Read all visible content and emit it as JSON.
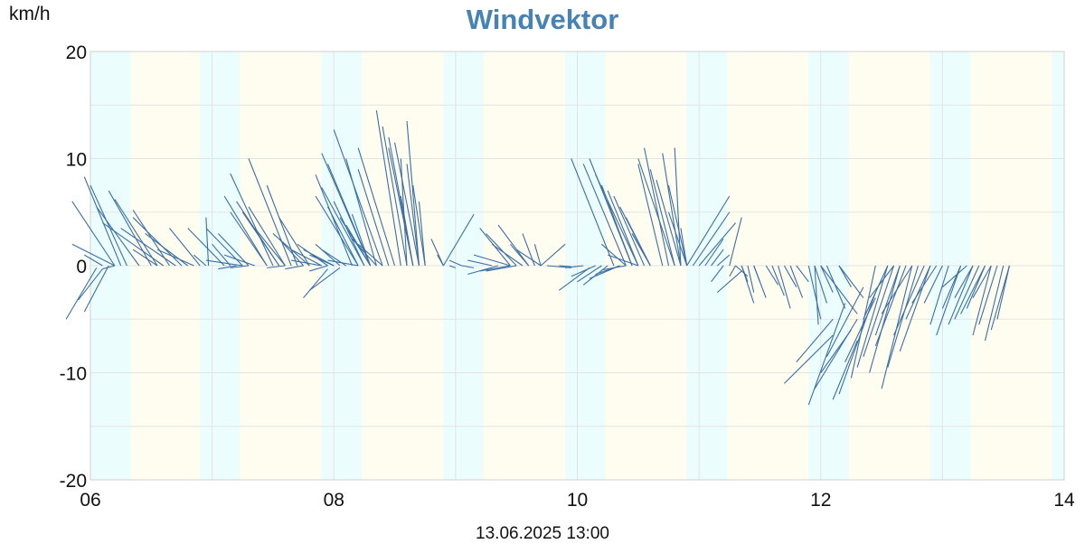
{
  "chart_data": {
    "type": "vector",
    "title": "Windvektor",
    "ylabel": "km/h",
    "footer": "13.06.2025 13:00",
    "xlim": [
      6,
      14
    ],
    "ylim": [
      -20,
      20
    ],
    "x_ticks": [
      "06",
      "08",
      "10",
      "12",
      "14"
    ],
    "y_ticks": [
      "20",
      "10",
      "0",
      "-10",
      "-20"
    ],
    "grid": true,
    "colors": {
      "vector": "#3a6fa5",
      "title": "#4682b4",
      "day": "#fffdf0",
      "night": "#ecfdfe",
      "grid": "#e3e3e3"
    },
    "vectors": [
      [
        5.8,
        -5.0,
        6.05,
        -0.2
      ],
      [
        5.9,
        -3.2,
        6.1,
        -0.3
      ],
      [
        5.95,
        -4.3,
        6.15,
        0
      ],
      [
        6.1,
        -0.3,
        6.2,
        0
      ],
      [
        5.85,
        6.0,
        6.2,
        0
      ],
      [
        5.95,
        8.3,
        6.25,
        0
      ],
      [
        6.0,
        7.5,
        6.3,
        0
      ],
      [
        6.05,
        5.5,
        6.4,
        0
      ],
      [
        6.15,
        7.0,
        6.5,
        0
      ],
      [
        6.2,
        6.2,
        6.55,
        0
      ],
      [
        6.1,
        4.0,
        6.6,
        0
      ],
      [
        6.35,
        5.2,
        6.65,
        0
      ],
      [
        6.25,
        3.5,
        6.7,
        0
      ],
      [
        6.35,
        4.5,
        6.75,
        0
      ],
      [
        5.85,
        2.0,
        6.2,
        0
      ],
      [
        5.95,
        1.0,
        6.1,
        0
      ],
      [
        6.35,
        1.5,
        6.55,
        0
      ],
      [
        6.45,
        3.0,
        6.8,
        0
      ],
      [
        6.55,
        1.5,
        6.85,
        0
      ],
      [
        6.85,
        1.0,
        6.95,
        0
      ],
      [
        6.65,
        3.5,
        6.9,
        0
      ],
      [
        6.8,
        3.5,
        7.1,
        0
      ],
      [
        6.95,
        3.5,
        7.25,
        0
      ],
      [
        6.95,
        4.5,
        6.97,
        0
      ],
      [
        7.0,
        2.0,
        7.15,
        0
      ],
      [
        7.05,
        -0.3,
        7.2,
        0
      ],
      [
        7.15,
        -0.2,
        7.3,
        0
      ],
      [
        6.95,
        0.5,
        7.25,
        0
      ],
      [
        7.05,
        3.0,
        7.3,
        0
      ],
      [
        7.1,
        1.0,
        7.35,
        0
      ],
      [
        7.15,
        8.6,
        7.5,
        0
      ],
      [
        7.1,
        6.5,
        7.45,
        0
      ],
      [
        7.15,
        5.0,
        7.45,
        0
      ],
      [
        7.2,
        6.0,
        7.55,
        0
      ],
      [
        7.25,
        5.0,
        7.55,
        0
      ],
      [
        7.3,
        5.5,
        7.6,
        0
      ],
      [
        7.3,
        10.0,
        7.65,
        0
      ],
      [
        7.35,
        3.5,
        7.6,
        0
      ],
      [
        7.45,
        7.5,
        7.7,
        0
      ],
      [
        7.5,
        3.0,
        7.8,
        0
      ],
      [
        7.55,
        4.5,
        7.8,
        0
      ],
      [
        7.65,
        1.5,
        7.9,
        0
      ],
      [
        7.7,
        2.0,
        7.95,
        0
      ],
      [
        7.75,
        1.5,
        8.0,
        0
      ],
      [
        7.8,
        1.0,
        8.0,
        0
      ],
      [
        7.55,
        2.5,
        7.75,
        0
      ],
      [
        7.65,
        0.5,
        7.9,
        0
      ],
      [
        7.45,
        -0.2,
        7.6,
        0
      ],
      [
        7.6,
        -0.3,
        7.75,
        0
      ],
      [
        7.85,
        2.0,
        8.05,
        0
      ],
      [
        7.8,
        -0.5,
        7.95,
        0
      ],
      [
        7.75,
        -3.0,
        7.95,
        -0.3
      ],
      [
        7.8,
        -2.3,
        8.05,
        -0.2
      ],
      [
        7.85,
        8.5,
        8.15,
        0
      ],
      [
        7.9,
        10.5,
        8.3,
        0
      ],
      [
        7.95,
        9.5,
        8.3,
        0
      ],
      [
        7.85,
        6.5,
        8.2,
        0
      ],
      [
        7.9,
        7.3,
        8.25,
        0
      ],
      [
        7.95,
        5.5,
        8.2,
        0
      ],
      [
        8.0,
        6.0,
        8.25,
        0
      ],
      [
        8.05,
        4.5,
        8.3,
        0
      ],
      [
        8.1,
        3.8,
        8.3,
        0
      ],
      [
        8.15,
        4.8,
        8.3,
        0
      ],
      [
        8.0,
        12.7,
        8.4,
        0
      ],
      [
        8.1,
        10.0,
        8.35,
        0
      ],
      [
        8.2,
        9.0,
        8.45,
        0
      ],
      [
        8.15,
        2.5,
        8.35,
        0
      ],
      [
        8.2,
        2.0,
        8.4,
        0
      ],
      [
        7.9,
        1.5,
        8.1,
        0
      ],
      [
        7.95,
        0.5,
        8.2,
        0
      ],
      [
        8.2,
        11.0,
        8.5,
        0
      ],
      [
        8.35,
        14.5,
        8.55,
        0
      ],
      [
        8.4,
        13.0,
        8.6,
        0
      ],
      [
        8.45,
        12.0,
        8.65,
        0
      ],
      [
        8.5,
        11.5,
        8.7,
        0
      ],
      [
        8.55,
        10.0,
        8.6,
        0
      ],
      [
        8.6,
        9.5,
        8.7,
        0
      ],
      [
        8.65,
        7.5,
        8.75,
        0
      ],
      [
        8.45,
        11.0,
        8.65,
        0
      ],
      [
        8.6,
        13.5,
        8.7,
        0
      ],
      [
        8.55,
        6.5,
        8.65,
        0
      ],
      [
        8.7,
        6.0,
        8.75,
        0
      ],
      [
        8.8,
        2.5,
        8.9,
        0
      ],
      [
        8.85,
        1.0,
        8.9,
        0
      ],
      [
        8.9,
        0,
        9.15,
        4.8
      ],
      [
        8.95,
        0.5,
        9.05,
        0
      ],
      [
        8.95,
        0,
        9.0,
        -0.2
      ],
      [
        9.05,
        0,
        9.15,
        -0.2
      ],
      [
        9.1,
        0.5,
        9.3,
        0
      ],
      [
        9.2,
        3.5,
        9.45,
        0
      ],
      [
        9.25,
        3.0,
        9.5,
        0
      ],
      [
        9.3,
        2.0,
        9.55,
        0
      ],
      [
        9.35,
        3.8,
        9.6,
        0
      ],
      [
        9.45,
        2.0,
        9.6,
        0
      ],
      [
        9.55,
        3.0,
        9.65,
        0
      ],
      [
        9.5,
        1.5,
        9.7,
        0
      ],
      [
        9.65,
        2.0,
        9.7,
        0
      ],
      [
        9.15,
        1.0,
        9.45,
        0
      ],
      [
        9.2,
        -0.5,
        9.45,
        0
      ],
      [
        9.25,
        -0.5,
        9.5,
        0
      ],
      [
        9.1,
        -0.8,
        9.35,
        0
      ],
      [
        9.7,
        0,
        9.9,
        2.0
      ],
      [
        9.75,
        0,
        9.95,
        -0.2
      ],
      [
        9.85,
        0,
        9.95,
        -0.1
      ],
      [
        9.9,
        -0.2,
        10.05,
        0
      ],
      [
        9.85,
        -2.3,
        10.1,
        -0.2
      ],
      [
        9.95,
        -1.0,
        10.15,
        0
      ],
      [
        10.0,
        -1.5,
        10.2,
        0
      ],
      [
        10.05,
        -1.8,
        10.25,
        0
      ],
      [
        10.1,
        -1.2,
        10.35,
        0
      ],
      [
        10.15,
        -0.8,
        10.35,
        0
      ],
      [
        10.2,
        -0.4,
        10.4,
        0
      ],
      [
        9.95,
        10.0,
        10.3,
        0
      ],
      [
        10.05,
        9.5,
        10.4,
        0
      ],
      [
        10.1,
        10.0,
        10.45,
        0
      ],
      [
        10.15,
        8.5,
        10.5,
        0
      ],
      [
        10.2,
        7.5,
        10.45,
        0
      ],
      [
        10.25,
        7.0,
        10.5,
        0
      ],
      [
        10.3,
        6.5,
        10.55,
        0
      ],
      [
        10.35,
        5.5,
        10.6,
        0
      ],
      [
        10.4,
        4.5,
        10.6,
        0
      ],
      [
        10.2,
        2.0,
        10.4,
        0
      ],
      [
        10.25,
        1.0,
        10.5,
        0
      ],
      [
        10.45,
        3.0,
        10.6,
        0
      ],
      [
        10.5,
        9.5,
        10.7,
        0
      ],
      [
        10.55,
        11.0,
        10.75,
        0
      ],
      [
        10.5,
        10.0,
        10.8,
        0
      ],
      [
        10.6,
        9.0,
        10.8,
        0
      ],
      [
        10.65,
        8.0,
        10.85,
        0
      ],
      [
        10.7,
        10.5,
        10.85,
        0
      ],
      [
        10.75,
        7.5,
        10.9,
        0
      ],
      [
        10.8,
        11.0,
        10.85,
        0
      ],
      [
        10.75,
        5.0,
        10.9,
        0
      ],
      [
        10.85,
        3.5,
        10.9,
        0
      ],
      [
        10.9,
        0,
        11.25,
        6.5
      ],
      [
        10.95,
        0,
        11.25,
        5.0
      ],
      [
        11.0,
        0,
        11.3,
        4.0
      ],
      [
        11.05,
        0,
        11.2,
        2.5
      ],
      [
        11.1,
        0,
        11.2,
        1.5
      ],
      [
        11.15,
        0,
        11.25,
        1.0
      ],
      [
        11.25,
        0,
        11.35,
        4.5
      ],
      [
        11.35,
        0,
        11.4,
        -1.5
      ],
      [
        11.35,
        0,
        11.45,
        -3.5
      ],
      [
        11.4,
        0,
        11.45,
        -2.5
      ],
      [
        11.45,
        0,
        11.5,
        -1.5
      ],
      [
        11.45,
        0,
        11.55,
        -3.0
      ],
      [
        11.3,
        0,
        11.4,
        -1.0
      ],
      [
        11.2,
        0,
        11.1,
        -1.5
      ],
      [
        11.15,
        -2.5,
        11.35,
        -0.5
      ],
      [
        11.25,
        -1.0,
        11.3,
        0
      ],
      [
        11.6,
        0,
        11.7,
        -2.8
      ],
      [
        11.65,
        0,
        11.75,
        -4.0
      ],
      [
        11.7,
        0,
        11.8,
        -2.0
      ],
      [
        11.75,
        0,
        11.85,
        -3.0
      ],
      [
        11.8,
        0,
        11.9,
        -1.5
      ],
      [
        11.55,
        0,
        11.65,
        -1.8
      ],
      [
        11.9,
        0,
        12.0,
        -5.0
      ],
      [
        11.95,
        0,
        12.05,
        -3.5
      ],
      [
        12.0,
        0,
        12.1,
        -2.5
      ],
      [
        12.05,
        0,
        12.2,
        -4.0
      ],
      [
        12.15,
        0,
        12.25,
        -2.0
      ],
      [
        11.95,
        0,
        11.98,
        -5.5
      ],
      [
        12.0,
        0,
        12.3,
        -4.5
      ],
      [
        12.15,
        0,
        12.35,
        -3.0
      ],
      [
        11.9,
        -13.0,
        12.2,
        -3.5
      ],
      [
        11.95,
        -11.5,
        12.3,
        -5.0
      ],
      [
        12.0,
        -10.0,
        12.25,
        -6.0
      ],
      [
        12.1,
        -12.5,
        12.3,
        -7.0
      ],
      [
        11.7,
        -11.0,
        12.1,
        -6.5
      ],
      [
        11.8,
        -9.0,
        12.1,
        -5.0
      ],
      [
        12.05,
        -8.5,
        12.35,
        -2.0
      ],
      [
        12.15,
        -12.0,
        12.45,
        -2.5
      ],
      [
        12.25,
        -10.5,
        12.45,
        0
      ],
      [
        12.2,
        -9.0,
        12.45,
        -3.0
      ],
      [
        12.3,
        -9.5,
        12.55,
        0
      ],
      [
        12.35,
        -8.5,
        12.6,
        0
      ],
      [
        12.4,
        -10.0,
        12.65,
        0
      ],
      [
        12.45,
        -7.5,
        12.7,
        0
      ],
      [
        12.5,
        -11.5,
        12.75,
        0
      ],
      [
        12.55,
        -9.5,
        12.8,
        0
      ],
      [
        12.45,
        -6.5,
        12.65,
        0
      ],
      [
        12.5,
        -4.5,
        12.75,
        0
      ],
      [
        12.6,
        -6.5,
        12.85,
        0
      ],
      [
        12.65,
        -8.0,
        12.9,
        0
      ],
      [
        12.7,
        -5.0,
        12.9,
        0
      ],
      [
        12.75,
        -3.5,
        12.95,
        0
      ],
      [
        12.35,
        -5.0,
        12.55,
        0
      ],
      [
        12.4,
        -3.0,
        12.6,
        0
      ],
      [
        12.85,
        -3.5,
        13.0,
        0
      ],
      [
        12.9,
        -5.5,
        13.05,
        0
      ],
      [
        12.95,
        -6.5,
        13.15,
        0
      ],
      [
        13.0,
        -4.0,
        13.15,
        0
      ],
      [
        13.05,
        -5.5,
        13.25,
        0
      ],
      [
        13.1,
        -5.0,
        13.3,
        0
      ],
      [
        13.15,
        -4.5,
        13.35,
        0
      ],
      [
        13.25,
        -6.5,
        13.4,
        0
      ],
      [
        13.35,
        -7.0,
        13.5,
        0
      ],
      [
        13.3,
        -5.5,
        13.45,
        0
      ],
      [
        13.4,
        -6.0,
        13.55,
        0
      ],
      [
        13.45,
        -5.0,
        13.55,
        0
      ],
      [
        13.2,
        -4.0,
        13.35,
        0
      ],
      [
        13.1,
        -3.0,
        13.25,
        0
      ],
      [
        13.0,
        -2.0,
        13.2,
        0
      ],
      [
        13.25,
        -3.0,
        13.4,
        0
      ]
    ]
  }
}
